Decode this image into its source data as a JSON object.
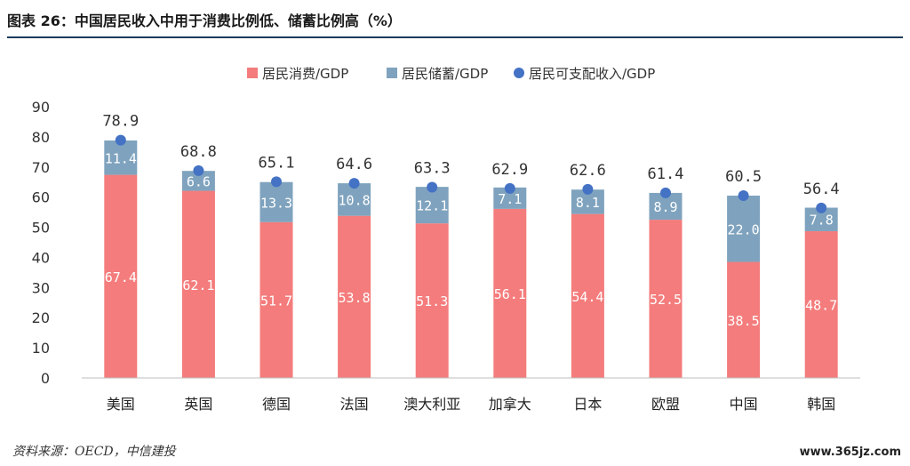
{
  "figure": {
    "title": "图表 26：中国居民收入中用于消费比例低、储蓄比例高（%）",
    "source": "资料来源：OECD，中信建投",
    "watermark": "www.365jz.com"
  },
  "chart_data": {
    "type": "bar",
    "stacked": true,
    "categories": [
      "美国",
      "英国",
      "德国",
      "法国",
      "澳大利亚",
      "加拿大",
      "日本",
      "欧盟",
      "中国",
      "韩国"
    ],
    "series": [
      {
        "name": "居民消费/GDP",
        "kind": "bar",
        "color": "#f47c7c",
        "values": [
          67.4,
          62.1,
          51.7,
          53.8,
          51.3,
          56.1,
          54.4,
          52.5,
          38.5,
          48.7
        ],
        "labels": [
          "67.4",
          "62.1",
          "51.7",
          "53.8",
          "51.3",
          "56.1",
          "54.4",
          "52.5",
          "38.5",
          "48.7"
        ]
      },
      {
        "name": "居民储蓄/GDP",
        "kind": "bar",
        "color": "#7fa3be",
        "values": [
          11.4,
          6.6,
          13.3,
          10.8,
          12.1,
          7.1,
          8.1,
          8.9,
          22.0,
          7.8
        ],
        "labels": [
          "11.4",
          "6.6",
          "13.3",
          "10.8",
          "12.1",
          "7.1",
          "8.1",
          "8.9",
          "22.0",
          "7.8"
        ]
      },
      {
        "name": "居民可支配收入/GDP",
        "kind": "point",
        "color": "#4472c4",
        "values": [
          78.9,
          68.8,
          65.1,
          64.6,
          63.3,
          62.9,
          62.6,
          61.4,
          60.5,
          56.4
        ],
        "labels": [
          "78.9",
          "68.8",
          "65.1",
          "64.6",
          "63.3",
          "62.9",
          "62.6",
          "61.4",
          "60.5",
          "56.4"
        ]
      }
    ],
    "ylim": [
      0,
      90
    ],
    "yticks": [
      "0",
      "10",
      "20",
      "30",
      "40",
      "50",
      "60",
      "70",
      "80",
      "90"
    ],
    "grid": false,
    "legend": "top-center"
  }
}
